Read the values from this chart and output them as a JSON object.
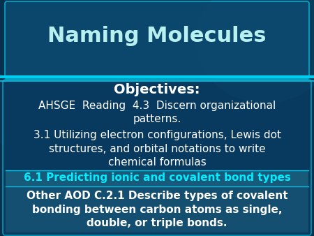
{
  "title": "Naming Molecules",
  "title_color": "#b8f0f0",
  "title_fontsize": 22,
  "objectives_label": "Objectives:",
  "objectives_color": "#ffffff",
  "objectives_fontsize": 14,
  "line1_text": "AHSGE  Reading  4.3  Discern organizational\npatterns.",
  "line1_color": "#ffffff",
  "line1_fontsize": 11,
  "line2_text": "3.1 Utilizing electron configurations, Lewis dot\nstructures, and orbital notations to write\nchemical formulas",
  "line2_color": "#ffffff",
  "line2_fontsize": 11,
  "line3_text": "6.1 Predicting ionic and covalent bond types",
  "line3_color": "#00eeff",
  "line3_fontsize": 11,
  "line3_bold": true,
  "line4_text": "Other AOD C.2.1 Describe types of covalent\nbonding between carbon atoms as single,\ndouble, or triple bonds.",
  "line4_color": "#ffffff",
  "line4_fontsize": 11,
  "bg_color": "#06304d",
  "title_bar_color": "#0d4a72",
  "content_box_color": "#0a3d65",
  "separator_color": "#00ccee",
  "highlight3_color": "#1a6080",
  "highlight4_color": "#1a5878",
  "border_color": "#00bbdd"
}
